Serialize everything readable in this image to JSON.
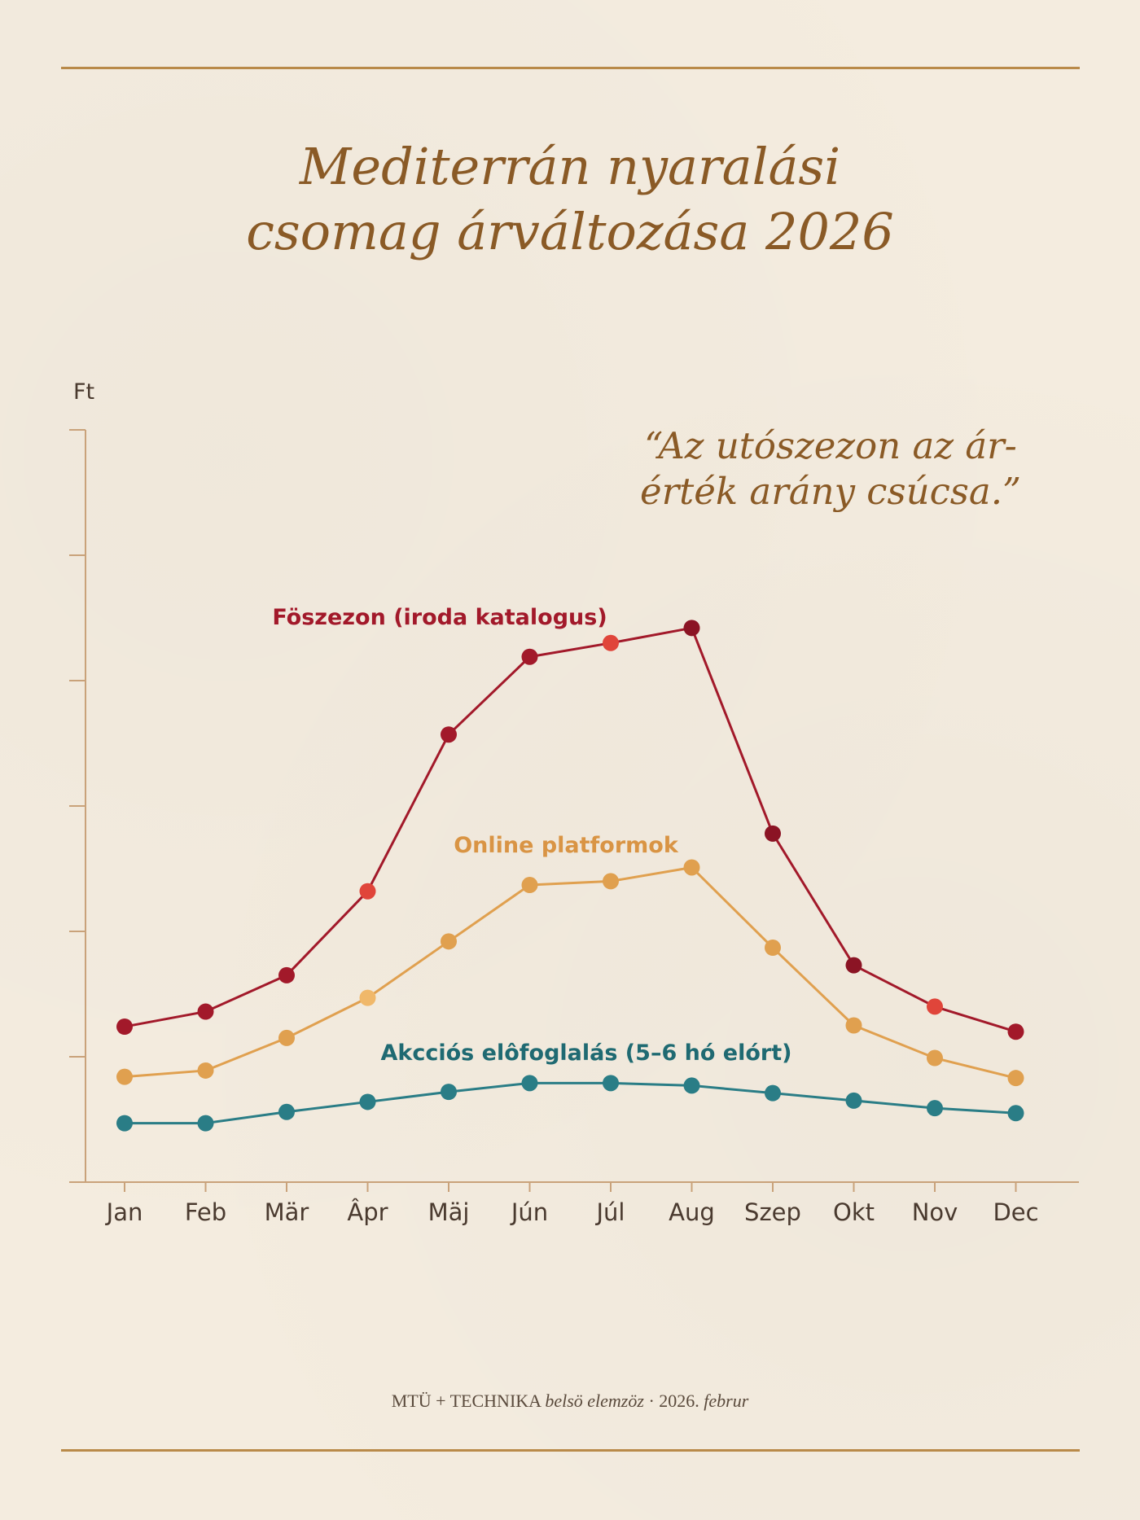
{
  "header": {
    "title_line1": "Mediterrán nyaralási",
    "title_line2": "csomag árváltozása 2026"
  },
  "quote": {
    "line1": "“Az utószezon az ár-",
    "line2": "érték arány csúcsa.”"
  },
  "footer": {
    "text_main": "MTÜ + TECHNIKA ",
    "text_italic": "belsö elemzöz",
    "separator": " · ",
    "date": "2026. ",
    "date_italic": "februr"
  },
  "colors": {
    "accent": "#8a5a26",
    "rule": "#b98a49",
    "axis": "#c9a27a",
    "series_main": "#a2192a",
    "series_main_highlight": "#e0453a",
    "series_online": "#e0a04f",
    "series_online_highlight": "#f0b86a",
    "series_early": "#2a7d86"
  },
  "chart_data": {
    "type": "line",
    "ylabel": "Ft",
    "xlabel": "",
    "ylim": [
      0,
      600
    ],
    "y_ticks": [
      0,
      100,
      200,
      300,
      400,
      500,
      600
    ],
    "y_tick_labels_shown": false,
    "grid": false,
    "categories": [
      "Jan",
      "Feb",
      "Mär",
      "Âpr",
      "Mäj",
      "Jún",
      "Júl",
      "Aug",
      "Szep",
      "Okt",
      "Nov",
      "Dec"
    ],
    "series": [
      {
        "name": "Föszezon (iroda katalogus)",
        "color": "#a2192a",
        "highlight_points": [
          3,
          6,
          10
        ],
        "values": [
          124,
          136,
          165,
          232,
          357,
          419,
          430,
          442,
          278,
          173,
          140,
          120
        ]
      },
      {
        "name": "Online platformok",
        "color": "#e0a04f",
        "highlight_points": [
          3
        ],
        "values": [
          84,
          89,
          115,
          147,
          192,
          237,
          240,
          251,
          187,
          125,
          99,
          83
        ]
      },
      {
        "name": "Akcciós elôfoglalás (5–6 hó elórt)",
        "color": "#2a7d86",
        "highlight_points": [],
        "values": [
          47,
          47,
          56,
          64,
          72,
          79,
          79,
          77,
          71,
          65,
          59,
          55
        ]
      }
    ]
  }
}
